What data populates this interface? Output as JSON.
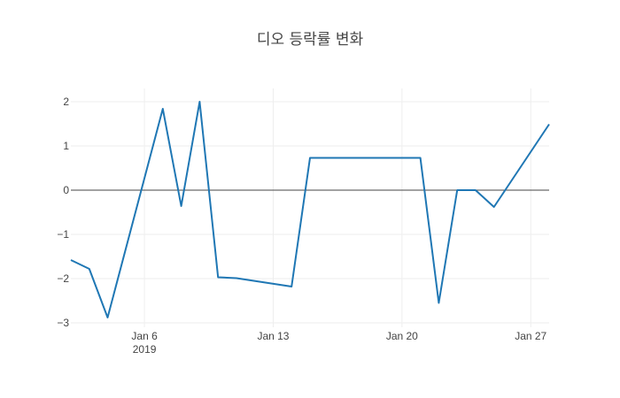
{
  "chart_data": {
    "type": "line",
    "title": "디오 등락률 변화",
    "xlabel": "",
    "ylabel": "",
    "x_range": [
      "2019-01-02",
      "2019-01-28"
    ],
    "ylim": [
      -3.1,
      2.3
    ],
    "grid": true,
    "legend": "none",
    "x_ticks": [
      {
        "date": "2019-01-06",
        "label": "Jan 6",
        "sublabel": "2019"
      },
      {
        "date": "2019-01-13",
        "label": "Jan 13",
        "sublabel": ""
      },
      {
        "date": "2019-01-20",
        "label": "Jan 20",
        "sublabel": ""
      },
      {
        "date": "2019-01-27",
        "label": "Jan 27",
        "sublabel": ""
      }
    ],
    "y_ticks": [
      {
        "value": 2,
        "label": "2"
      },
      {
        "value": 1,
        "label": "1"
      },
      {
        "value": 0,
        "label": "0"
      },
      {
        "value": -1,
        "label": "−1"
      },
      {
        "value": -2,
        "label": "−2"
      },
      {
        "value": -3,
        "label": "−3"
      }
    ],
    "series": [
      {
        "color": "#1f77b4",
        "x": [
          "2019-01-02",
          "2019-01-03",
          "2019-01-04",
          "2019-01-07",
          "2019-01-08",
          "2019-01-09",
          "2019-01-10",
          "2019-01-11",
          "2019-01-14",
          "2019-01-15",
          "2019-01-21",
          "2019-01-22",
          "2019-01-23",
          "2019-01-24",
          "2019-01-25",
          "2019-01-28"
        ],
        "y": [
          -1.58,
          -1.78,
          -2.88,
          1.84,
          -0.36,
          2.0,
          -1.97,
          -1.99,
          -2.18,
          0.73,
          0.73,
          -2.55,
          0.0,
          0.0,
          -0.38,
          1.49
        ]
      }
    ]
  }
}
